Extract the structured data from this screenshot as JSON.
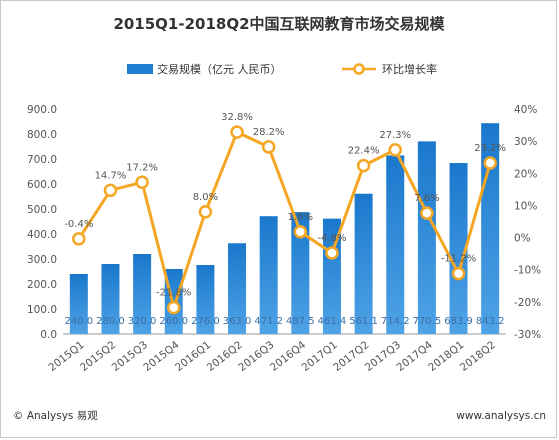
{
  "chart_data": {
    "type": "bar",
    "title": "2015Q1-2018Q2中国互联网教育市场交易规模",
    "categories": [
      "2015Q1",
      "2015Q2",
      "2015Q3",
      "2015Q4",
      "2016Q1",
      "2016Q2",
      "2016Q3",
      "2016Q4",
      "2017Q1",
      "2017Q2",
      "2017Q3",
      "2017Q4",
      "2018Q1",
      "2018Q2"
    ],
    "bar_value_labels": [
      "240.0",
      "280.0",
      "320.0",
      "260.0",
      "276.0",
      "363.0",
      "471.2",
      "487.5",
      "461.4",
      "561.1",
      "714.2",
      "770.5",
      "683.9",
      "843.2"
    ],
    "series": [
      {
        "name": "交易规模（亿元 人民币）",
        "type": "bar",
        "axis": "left",
        "values": [
          240.0,
          280.0,
          320.0,
          260.0,
          276.0,
          363.0,
          471.2,
          487.5,
          461.4,
          561.1,
          714.2,
          770.5,
          683.9,
          843.2
        ],
        "color": "#1e7fd0"
      },
      {
        "name": "环比增长率",
        "type": "line",
        "axis": "right",
        "values": [
          -0.4,
          14.7,
          17.2,
          -21.8,
          8.0,
          32.8,
          28.2,
          1.8,
          -4.8,
          22.4,
          27.3,
          7.6,
          -11.2,
          23.2
        ],
        "labels": [
          "-0.4%",
          "14.7%",
          "17.2%",
          "-21.8%",
          "8.0%",
          "32.8%",
          "28.2%",
          "1.8%",
          "-4.8%",
          "22.4%",
          "27.3%",
          "7.6%",
          "-11.2%",
          "23.2%"
        ],
        "color": "#f5a623"
      }
    ],
    "y_left": {
      "min": 0,
      "max": 900,
      "ticks": [
        "0.0",
        "100.0",
        "200.0",
        "300.0",
        "400.0",
        "500.0",
        "600.0",
        "700.0",
        "800.0",
        "900.0"
      ]
    },
    "y_right": {
      "min": -30,
      "max": 40,
      "ticks": [
        "-30%",
        "-20%",
        "-10%",
        "0%",
        "10%",
        "20%",
        "30%",
        "40%"
      ]
    },
    "legend_position": "top-center",
    "grid": false
  },
  "footer": {
    "left": "© Analysys 易观",
    "right": "www.analysys.cn"
  }
}
